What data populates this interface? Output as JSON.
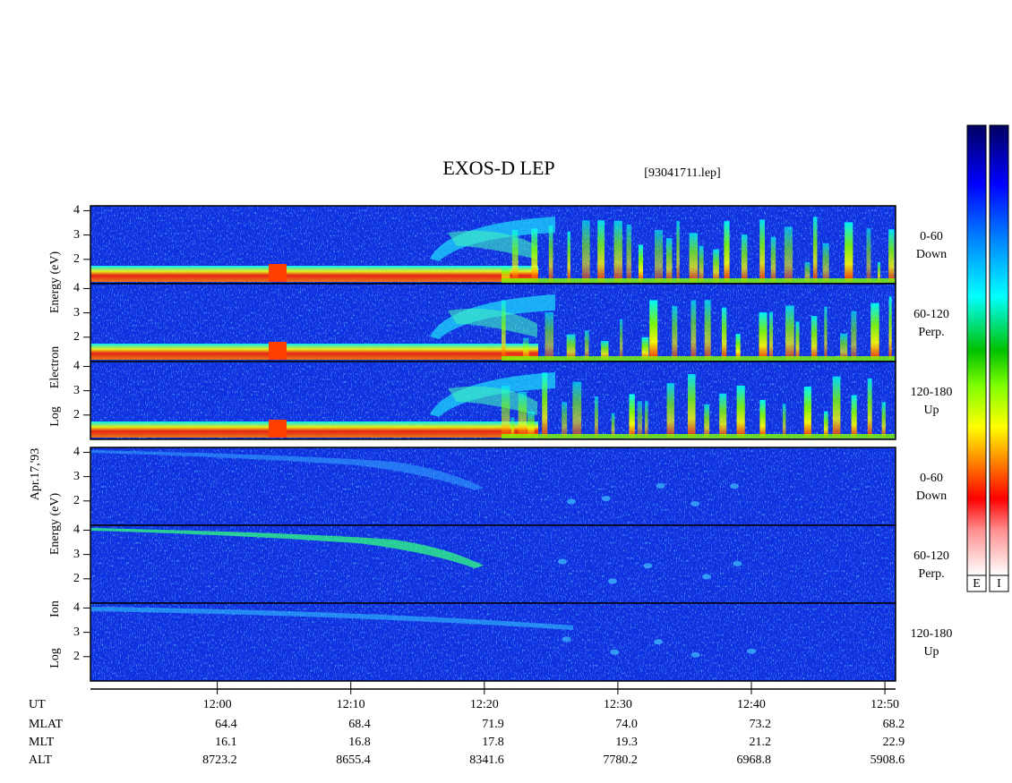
{
  "chart_data": {
    "type": "spectrogram",
    "title": "EXOS-D LEP",
    "subtitle": "[93041711.lep]",
    "date_label": "Apr.17,'93",
    "xlim": [
      710.5,
      770.8
    ],
    "xticks": [
      {
        "value": 720,
        "label": "12:00"
      },
      {
        "value": 730,
        "label": "12:10"
      },
      {
        "value": 740,
        "label": "12:20"
      },
      {
        "value": 750,
        "label": "12:30"
      },
      {
        "value": 760,
        "label": "12:40"
      },
      {
        "value": 770,
        "label": "12:50"
      }
    ],
    "groups": [
      {
        "ylabel": [
          "Log",
          "Electron",
          "Energy (eV)"
        ],
        "panels": [
          {
            "label": [
              "0-60",
              "Down"
            ]
          },
          {
            "label": [
              "60-120",
              "Perp."
            ]
          },
          {
            "label": [
              "120-180",
              "Up"
            ]
          }
        ]
      },
      {
        "ylabel": [
          "Log",
          "Ion",
          "Energy (eV)"
        ],
        "panels": [
          {
            "label": [
              "0-60",
              "Down"
            ]
          },
          {
            "label": [
              "60-120",
              "Perp."
            ]
          },
          {
            "label": [
              "120-180",
              "Up"
            ]
          }
        ]
      }
    ],
    "ylim": [
      1,
      4.2
    ],
    "yticks": [
      2,
      3,
      4
    ],
    "time_row_label": "UT",
    "ephemeris": [
      {
        "name": "MLAT",
        "values": [
          "64.4",
          "68.4",
          "71.9",
          "74.0",
          "73.2",
          "68.2"
        ]
      },
      {
        "name": "MLT",
        "values": [
          "16.1",
          "16.8",
          "17.8",
          "19.3",
          "21.2",
          "22.9"
        ]
      },
      {
        "name": "ALT",
        "values": [
          "8723.2",
          "8655.4",
          "8341.6",
          "7780.2",
          "6968.8",
          "5908.6"
        ]
      }
    ],
    "colorbars": [
      "E",
      "I"
    ]
  }
}
